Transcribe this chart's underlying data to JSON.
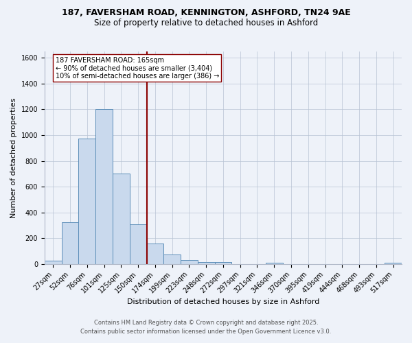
{
  "title_line1": "187, FAVERSHAM ROAD, KENNINGTON, ASHFORD, TN24 9AE",
  "title_line2": "Size of property relative to detached houses in Ashford",
  "xlabel": "Distribution of detached houses by size in Ashford",
  "ylabel": "Number of detached properties",
  "categories": [
    "27sqm",
    "52sqm",
    "76sqm",
    "101sqm",
    "125sqm",
    "150sqm",
    "174sqm",
    "199sqm",
    "223sqm",
    "248sqm",
    "272sqm",
    "297sqm",
    "321sqm",
    "346sqm",
    "370sqm",
    "395sqm",
    "419sqm",
    "444sqm",
    "468sqm",
    "493sqm",
    "517sqm"
  ],
  "values": [
    25,
    325,
    975,
    1205,
    700,
    310,
    160,
    75,
    30,
    15,
    15,
    0,
    0,
    10,
    0,
    0,
    0,
    0,
    0,
    0,
    10
  ],
  "bar_color": "#c9d9ed",
  "bar_edge_color": "#5b8db8",
  "vline_index": 6,
  "vline_color": "#8b0000",
  "annotation_text": "187 FAVERSHAM ROAD: 165sqm\n← 90% of detached houses are smaller (3,404)\n10% of semi-detached houses are larger (386) →",
  "annotation_box_color": "#ffffff",
  "annotation_box_edge": "#8b0000",
  "ylim": [
    0,
    1650
  ],
  "yticks": [
    0,
    200,
    400,
    600,
    800,
    1000,
    1200,
    1400,
    1600
  ],
  "footer_line1": "Contains HM Land Registry data © Crown copyright and database right 2025.",
  "footer_line2": "Contains public sector information licensed under the Open Government Licence v3.0.",
  "bg_color": "#eef2f9",
  "plot_bg_color": "#eef2f9",
  "title_fontsize": 9,
  "subtitle_fontsize": 8.5,
  "xlabel_fontsize": 8,
  "ylabel_fontsize": 8,
  "tick_fontsize": 7,
  "annot_fontsize": 7,
  "footer_fontsize": 6
}
